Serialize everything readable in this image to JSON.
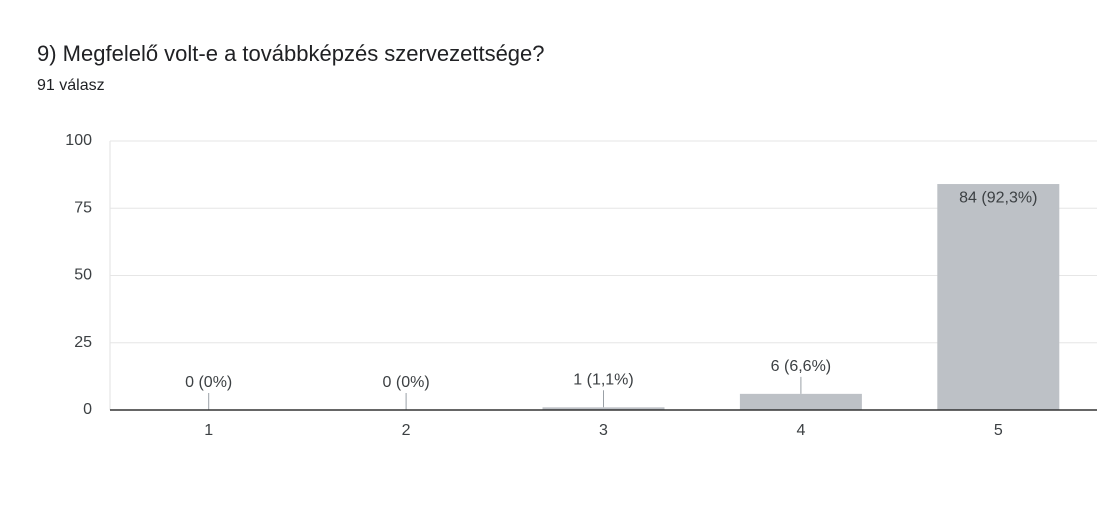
{
  "chart_data": {
    "type": "bar",
    "title": "9) Megfelelő volt-e a továbbképzés szervezettsége?",
    "subtitle": "91 válasz",
    "categories": [
      "1",
      "2",
      "3",
      "4",
      "5"
    ],
    "values": [
      0,
      0,
      1,
      6,
      84
    ],
    "value_labels": [
      "0 (0%)",
      "0 (0%)",
      "1 (1,1%)",
      "6 (6,6%)",
      "84 (92,3%)"
    ],
    "color": "#bdc1c6",
    "ylim": [
      0,
      100
    ],
    "yticks": [
      0,
      25,
      50,
      75,
      100
    ],
    "grid": true
  }
}
